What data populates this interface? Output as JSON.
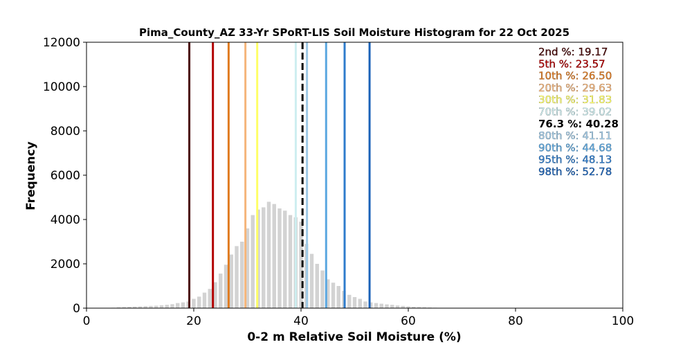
{
  "chart_data": {
    "type": "bar",
    "title": "Pima_County_AZ 33-Yr SPoRT-LIS Soil Moisture Histogram for 22 Oct 2025",
    "xlabel": "0-2 m Relative Soil Moisture (%)",
    "ylabel": "Frequency",
    "xlim": [
      0,
      100
    ],
    "ylim": [
      0,
      12000
    ],
    "xticks": [
      "0",
      "20",
      "40",
      "60",
      "80",
      "100"
    ],
    "yticks": [
      "0",
      "2000",
      "4000",
      "6000",
      "8000",
      "10000",
      "12000"
    ],
    "grid": false,
    "legend_position": "top-right",
    "bar_color": "#d3d3d3",
    "bin_width": 1,
    "bins": {
      "x": [
        3,
        4,
        5,
        6,
        7,
        8,
        9,
        10,
        11,
        12,
        13,
        14,
        15,
        16,
        17,
        18,
        19,
        20,
        21,
        22,
        23,
        24,
        25,
        26,
        27,
        28,
        29,
        30,
        31,
        32,
        33,
        34,
        35,
        36,
        37,
        38,
        39,
        40,
        41,
        42,
        43,
        44,
        45,
        46,
        47,
        48,
        49,
        50,
        51,
        52,
        53,
        54,
        55,
        56,
        57,
        58,
        59,
        60,
        61,
        62,
        63,
        64,
        65,
        66,
        67,
        68,
        69
      ],
      "y": [
        5,
        10,
        20,
        40,
        50,
        60,
        70,
        80,
        90,
        100,
        110,
        130,
        150,
        180,
        230,
        260,
        300,
        420,
        520,
        700,
        870,
        1170,
        1560,
        1960,
        2420,
        2800,
        3000,
        3600,
        4200,
        4450,
        4550,
        4800,
        4700,
        4500,
        4400,
        4200,
        4100,
        3900,
        2900,
        2450,
        2000,
        1700,
        1300,
        1150,
        1000,
        780,
        600,
        500,
        420,
        300,
        260,
        230,
        200,
        170,
        150,
        120,
        100,
        80,
        60,
        50,
        40,
        30,
        20,
        15,
        10,
        8,
        5
      ]
    },
    "percentile_lines": [
      {
        "label": "2nd %",
        "value": 19.17,
        "text": "2nd %: 19.17",
        "color": "#4a0a0a",
        "style": "solid"
      },
      {
        "label": "5th %",
        "value": 23.57,
        "text": "5th %: 23.57",
        "color": "#b20000",
        "style": "solid"
      },
      {
        "label": "10th %",
        "value": 26.5,
        "text": "10th %: 26.50",
        "color": "#e07b20",
        "style": "solid"
      },
      {
        "label": "20th %",
        "value": 29.63,
        "text": "20th %: 29.63",
        "color": "#f5b57a",
        "style": "solid"
      },
      {
        "label": "30th %",
        "value": 31.83,
        "text": "30th %: 31.83",
        "color": "#ffff66",
        "style": "solid"
      },
      {
        "label": "70th %",
        "value": 39.02,
        "text": "70th %: 39.02",
        "color": "#cdeef0",
        "style": "solid"
      },
      {
        "label": "76.3 %",
        "value": 40.28,
        "text": "76.3 %: 40.28",
        "color": "#000000",
        "style": "dashed"
      },
      {
        "label": "80th %",
        "value": 41.11,
        "text": "80th %: 41.11",
        "color": "#9ec9e6",
        "style": "solid"
      },
      {
        "label": "90th %",
        "value": 44.68,
        "text": "90th %: 44.68",
        "color": "#5aa7e0",
        "style": "solid"
      },
      {
        "label": "95th %",
        "value": 48.13,
        "text": "95th %: 48.13",
        "color": "#2e7ccc",
        "style": "solid"
      },
      {
        "label": "98th %",
        "value": 52.78,
        "text": "98th %: 52.78",
        "color": "#1a62b8",
        "style": "solid"
      }
    ]
  }
}
